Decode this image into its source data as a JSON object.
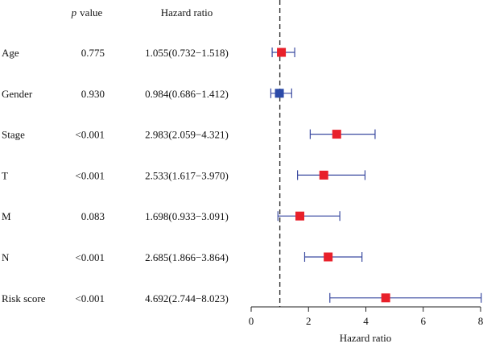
{
  "chart_data": {
    "type": "forest",
    "headers": {
      "pvalue_italic": "p",
      "pvalue_rest": "value",
      "hazard_ratio": "Hazard ratio"
    },
    "xlabel": "Hazard ratio",
    "xlim": [
      0,
      8
    ],
    "xticks": [
      "0",
      "2",
      "4",
      "6",
      "8"
    ],
    "reference_line": 1,
    "rows": [
      {
        "variable": "Age",
        "p_value": "0.775",
        "hr_text": "1.055(0.732−1.518)",
        "hr": 1.055,
        "lower": 0.732,
        "upper": 1.518,
        "color": "#e8202a"
      },
      {
        "variable": "Gender",
        "p_value": "0.930",
        "hr_text": "0.984(0.686−1.412)",
        "hr": 0.984,
        "lower": 0.686,
        "upper": 1.412,
        "color": "#2b4aa8"
      },
      {
        "variable": "Stage",
        "p_value": "<0.001",
        "hr_text": "2.983(2.059−4.321)",
        "hr": 2.983,
        "lower": 2.059,
        "upper": 4.321,
        "color": "#e8202a"
      },
      {
        "variable": "T",
        "p_value": "<0.001",
        "hr_text": "2.533(1.617−3.970)",
        "hr": 2.533,
        "lower": 1.617,
        "upper": 3.97,
        "color": "#e8202a"
      },
      {
        "variable": "M",
        "p_value": "0.083",
        "hr_text": "1.698(0.933−3.091)",
        "hr": 1.698,
        "lower": 0.933,
        "upper": 3.091,
        "color": "#e8202a"
      },
      {
        "variable": "N",
        "p_value": "<0.001",
        "hr_text": "2.685(1.866−3.864)",
        "hr": 2.685,
        "lower": 1.866,
        "upper": 3.864,
        "color": "#e8202a"
      },
      {
        "variable": "Risk score",
        "p_value": "<0.001",
        "hr_text": "4.692(2.744−8.023)",
        "hr": 4.692,
        "lower": 2.744,
        "upper": 8.023,
        "color": "#e8202a"
      }
    ],
    "colors": {
      "ci_line": "#3a4aa0",
      "axis": "#222222",
      "ref_line": "#333333"
    }
  }
}
